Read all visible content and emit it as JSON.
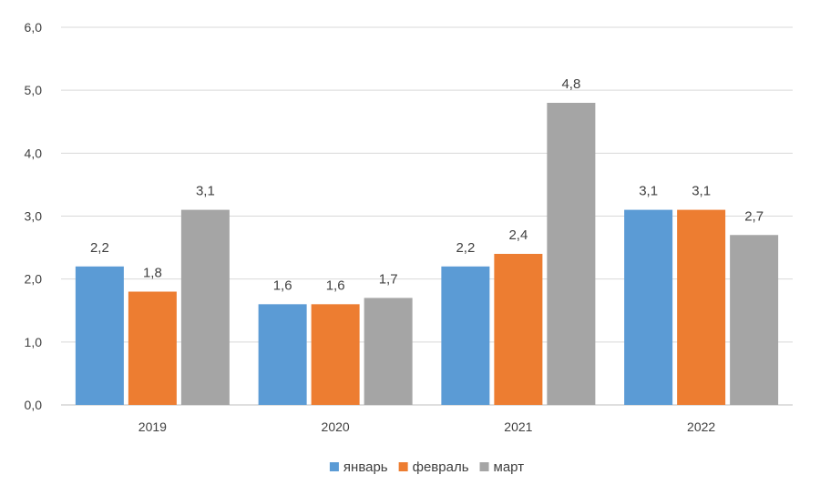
{
  "chart_data": {
    "type": "bar",
    "categories": [
      "2019",
      "2020",
      "2021",
      "2022"
    ],
    "series": [
      {
        "name": "январь",
        "color": "#5B9BD5",
        "values": [
          2.2,
          1.6,
          2.2,
          3.1
        ],
        "labels": [
          "2,2",
          "1,6",
          "2,2",
          "3,1"
        ]
      },
      {
        "name": "февраль",
        "color": "#ED7D31",
        "values": [
          1.8,
          1.6,
          2.4,
          3.1
        ],
        "labels": [
          "1,8",
          "1,6",
          "2,4",
          "3,1"
        ]
      },
      {
        "name": "март",
        "color": "#A5A5A5",
        "values": [
          3.1,
          1.7,
          4.8,
          2.7
        ],
        "labels": [
          "3,1",
          "1,7",
          "4,8",
          "2,7"
        ]
      }
    ],
    "ylim": [
      0,
      6
    ],
    "yticks": [
      0,
      1,
      2,
      3,
      4,
      5,
      6
    ],
    "ytick_labels": [
      "0,0",
      "1,0",
      "2,0",
      "3,0",
      "4,0",
      "5,0",
      "6,0"
    ],
    "grid": true,
    "legend": "bottom",
    "title": "",
    "xlabel": "",
    "ylabel": ""
  }
}
